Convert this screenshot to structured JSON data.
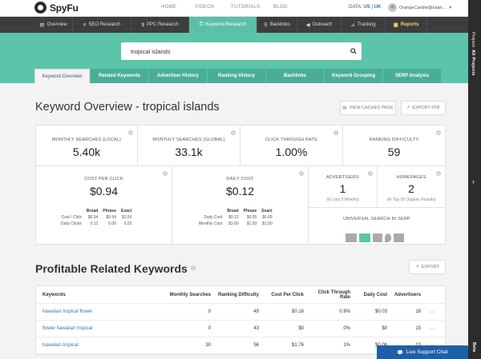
{
  "app": {
    "name": "SpyFu"
  },
  "topnav": {
    "links": [
      "HOME",
      "VIDEOS",
      "TUTORIALS",
      "BLOG"
    ],
    "data_label": "DATA:",
    "data_us": "US",
    "data_sep": "|",
    "data_uk": "UK",
    "user_name": "OrangeCandle@tutan..."
  },
  "toolbar": {
    "tabs": [
      "Overview",
      "SEO Research",
      "PPC Research",
      "Keyword Research",
      "Backlinks",
      "Outreach",
      "Tracking",
      "Reports"
    ],
    "active_index": 3
  },
  "search": {
    "value": "tropical islands"
  },
  "subtabs": [
    "Keyword Overview",
    "Related Keywords",
    "Advertiser History",
    "Ranking History",
    "Backlinks",
    "Keyword Grouping",
    "SERP Analysis"
  ],
  "sidebar": {
    "label_prefix": "Project: ",
    "label_bold": "All Projects",
    "beta": "Beta"
  },
  "overview": {
    "title": "Keyword Overview - tropical islands",
    "view_cached": "VIEW CACHED PAGE",
    "export_pdf": "EXPORT PDF"
  },
  "metrics": [
    {
      "label": "MONTHLY SEARCHES (LOCAL)",
      "value": "5.40k"
    },
    {
      "label": "MONTHLY SEARCHES (GLOBAL)",
      "value": "33.1k"
    },
    {
      "label": "CLICK-THROUGH RATE",
      "value": "1.00%"
    },
    {
      "label": "RANKING DIFFICULTY",
      "value": "59"
    }
  ],
  "cpc": {
    "label": "COST PER CLICK",
    "value": "$0.94",
    "headers": [
      "Broad",
      "Phrase",
      "Exact"
    ],
    "rows": [
      {
        "label": "Cost / Click",
        "values": [
          "$0.94",
          "$0.94",
          "$1.59"
        ]
      },
      {
        "label": "Daily Clicks",
        "values": [
          "0.12",
          "0.06",
          "0.03"
        ]
      }
    ]
  },
  "daily_cost": {
    "label": "DAILY COST",
    "value": "$0.12",
    "headers": [
      "Broad",
      "Phrase",
      "Exact"
    ],
    "rows": [
      {
        "label": "Daily Cost",
        "values": [
          "$0.12",
          "$0.05",
          "$0.05"
        ]
      },
      {
        "label": "Monthly Cost",
        "values": [
          "$3.60",
          "$1.50",
          "$1.50"
        ]
      }
    ]
  },
  "advertisers": {
    "label": "ADVERTISERS",
    "value": "1",
    "sub": "(In Last 3 Months)"
  },
  "homepages": {
    "label": "HOMEPAGES",
    "value": "2",
    "sub": "(In Top 50 Organic Results)"
  },
  "serp": {
    "label": "UNIVERSAL SEARCH IN SERP"
  },
  "related": {
    "title": "Profitable Related Keywords",
    "export": "EXPORT",
    "headers": [
      "Keywords",
      "Monthly Searches",
      "Ranking Difficulty",
      "Cost Per Click",
      "Click Through Rate",
      "Daily Cost",
      "Advertisers"
    ],
    "rows": [
      {
        "keyword": "hawaiian tropical flower",
        "searches": "0",
        "difficulty": "49",
        "cpc": "$0.16",
        "ctr": "0.9%",
        "daily_cost": "$0.03",
        "advertisers": "18"
      },
      {
        "keyword": "flower hawaiian tropical",
        "searches": "0",
        "difficulty": "43",
        "cpc": "$0",
        "ctr": "0%",
        "daily_cost": "$0",
        "advertisers": "15"
      },
      {
        "keyword": "hawaiian tropical",
        "searches": "30",
        "difficulty": "56",
        "cpc": "$1.76",
        "ctr": "1%",
        "daily_cost": "$0.06",
        "advertisers": "13"
      }
    ]
  },
  "chat": {
    "label": "Live Support Chat"
  },
  "colors": {
    "teal": "#5cc4a9",
    "dark_bar": "#3d3d3d",
    "link": "#2a7ab8",
    "chat": "#1f5fa8"
  }
}
